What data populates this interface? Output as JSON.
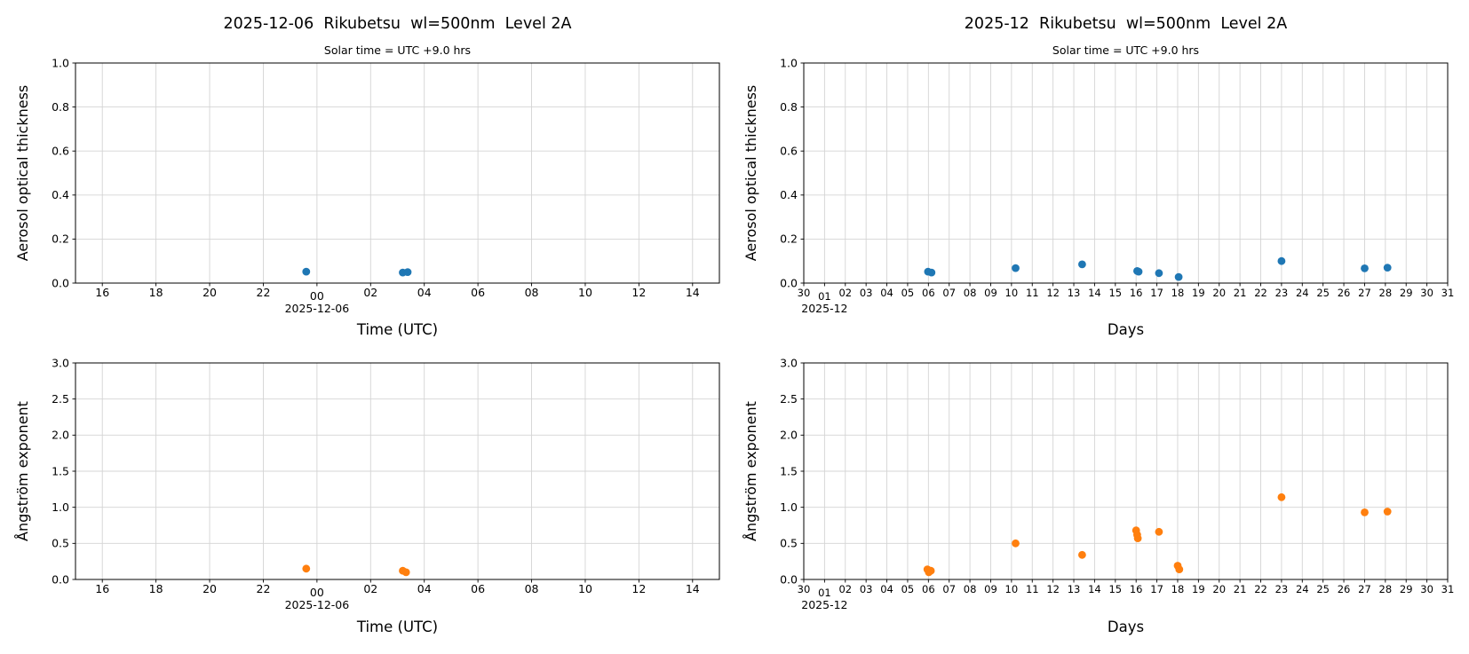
{
  "figure": {
    "background": "#ffffff"
  },
  "colors": {
    "aot_marker": "#1f77b4",
    "angstrom_marker": "#ff7f0e",
    "grid": "#d4d4d4",
    "axis": "#000000",
    "text": "#000000"
  },
  "chart_data": [
    {
      "id": "daily-aot",
      "type": "scatter",
      "title": "2025-12-06  Rikubetsu  wl=500nm  Level 2A",
      "subtitle": "Solar time = UTC +9.0 hrs",
      "xlabel": "Time (UTC)",
      "ylabel": "Aerosol optical thickness",
      "x_offset_label": "2025-12-06",
      "xlim": [
        -9,
        15
      ],
      "ylim": [
        0.0,
        1.0
      ],
      "grid": true,
      "marker_color": "#1f77b4",
      "xticks": [
        {
          "pos": -8,
          "label": "16"
        },
        {
          "pos": -6,
          "label": "18"
        },
        {
          "pos": -4,
          "label": "20"
        },
        {
          "pos": -2,
          "label": "22"
        },
        {
          "pos": 0,
          "label": "00",
          "major": true
        },
        {
          "pos": 2,
          "label": "02"
        },
        {
          "pos": 4,
          "label": "04"
        },
        {
          "pos": 6,
          "label": "06"
        },
        {
          "pos": 8,
          "label": "08"
        },
        {
          "pos": 10,
          "label": "10"
        },
        {
          "pos": 12,
          "label": "12"
        },
        {
          "pos": 14,
          "label": "14"
        }
      ],
      "yticks": [
        {
          "pos": 0.0,
          "label": "0.0"
        },
        {
          "pos": 0.2,
          "label": "0.2"
        },
        {
          "pos": 0.4,
          "label": "0.4"
        },
        {
          "pos": 0.6,
          "label": "0.6"
        },
        {
          "pos": 0.8,
          "label": "0.8"
        },
        {
          "pos": 1.0,
          "label": "1.0"
        }
      ],
      "points": [
        {
          "x": -0.4,
          "y": 0.052
        },
        {
          "x": 3.2,
          "y": 0.048
        },
        {
          "x": 3.38,
          "y": 0.05
        }
      ]
    },
    {
      "id": "monthly-aot",
      "type": "scatter",
      "title": "2025-12  Rikubetsu  wl=500nm  Level 2A",
      "subtitle": "Solar time = UTC +9.0 hrs",
      "xlabel": "Days",
      "ylabel": "Aerosol optical thickness",
      "x_offset_label": "2025-12",
      "xlim": [
        0,
        31
      ],
      "ylim": [
        0.0,
        1.0
      ],
      "grid": true,
      "marker_color": "#1f77b4",
      "xticks": [
        {
          "pos": 0,
          "label": "30"
        },
        {
          "pos": 1,
          "label": "01",
          "major": true
        },
        {
          "pos": 2,
          "label": "02"
        },
        {
          "pos": 3,
          "label": "03"
        },
        {
          "pos": 4,
          "label": "04"
        },
        {
          "pos": 5,
          "label": "05"
        },
        {
          "pos": 6,
          "label": "06"
        },
        {
          "pos": 7,
          "label": "07"
        },
        {
          "pos": 8,
          "label": "08"
        },
        {
          "pos": 9,
          "label": "09"
        },
        {
          "pos": 10,
          "label": "10"
        },
        {
          "pos": 11,
          "label": "11"
        },
        {
          "pos": 12,
          "label": "12"
        },
        {
          "pos": 13,
          "label": "13"
        },
        {
          "pos": 14,
          "label": "14"
        },
        {
          "pos": 15,
          "label": "15"
        },
        {
          "pos": 16,
          "label": "16"
        },
        {
          "pos": 17,
          "label": "17"
        },
        {
          "pos": 18,
          "label": "18"
        },
        {
          "pos": 19,
          "label": "19"
        },
        {
          "pos": 20,
          "label": "20"
        },
        {
          "pos": 21,
          "label": "21"
        },
        {
          "pos": 22,
          "label": "22"
        },
        {
          "pos": 23,
          "label": "23"
        },
        {
          "pos": 24,
          "label": "24"
        },
        {
          "pos": 25,
          "label": "25"
        },
        {
          "pos": 26,
          "label": "26"
        },
        {
          "pos": 27,
          "label": "27"
        },
        {
          "pos": 28,
          "label": "28"
        },
        {
          "pos": 29,
          "label": "29"
        },
        {
          "pos": 30,
          "label": "30"
        },
        {
          "pos": 31,
          "label": "31"
        }
      ],
      "yticks": [
        {
          "pos": 0.0,
          "label": "0.0"
        },
        {
          "pos": 0.2,
          "label": "0.2"
        },
        {
          "pos": 0.4,
          "label": "0.4"
        },
        {
          "pos": 0.6,
          "label": "0.6"
        },
        {
          "pos": 0.8,
          "label": "0.8"
        },
        {
          "pos": 1.0,
          "label": "1.0"
        }
      ],
      "points": [
        {
          "x": 5.98,
          "y": 0.052
        },
        {
          "x": 6.15,
          "y": 0.048
        },
        {
          "x": 10.2,
          "y": 0.068
        },
        {
          "x": 13.4,
          "y": 0.085
        },
        {
          "x": 16.05,
          "y": 0.055
        },
        {
          "x": 16.12,
          "y": 0.052
        },
        {
          "x": 17.1,
          "y": 0.045
        },
        {
          "x": 18.05,
          "y": 0.028
        },
        {
          "x": 23.0,
          "y": 0.1
        },
        {
          "x": 27.0,
          "y": 0.067
        },
        {
          "x": 28.1,
          "y": 0.07
        }
      ]
    },
    {
      "id": "daily-ae",
      "type": "scatter",
      "xlabel": "Time (UTC)",
      "ylabel": "Ångström exponent",
      "x_offset_label": "2025-12-06",
      "xlim": [
        -9,
        15
      ],
      "ylim": [
        0.0,
        3.0
      ],
      "grid": true,
      "marker_color": "#ff7f0e",
      "xticks": [
        {
          "pos": -8,
          "label": "16"
        },
        {
          "pos": -6,
          "label": "18"
        },
        {
          "pos": -4,
          "label": "20"
        },
        {
          "pos": -2,
          "label": "22"
        },
        {
          "pos": 0,
          "label": "00",
          "major": true
        },
        {
          "pos": 2,
          "label": "02"
        },
        {
          "pos": 4,
          "label": "04"
        },
        {
          "pos": 6,
          "label": "06"
        },
        {
          "pos": 8,
          "label": "08"
        },
        {
          "pos": 10,
          "label": "10"
        },
        {
          "pos": 12,
          "label": "12"
        },
        {
          "pos": 14,
          "label": "14"
        }
      ],
      "yticks": [
        {
          "pos": 0.0,
          "label": "0.0"
        },
        {
          "pos": 0.5,
          "label": "0.5"
        },
        {
          "pos": 1.0,
          "label": "1.0"
        },
        {
          "pos": 1.5,
          "label": "1.5"
        },
        {
          "pos": 2.0,
          "label": "2.0"
        },
        {
          "pos": 2.5,
          "label": "2.5"
        },
        {
          "pos": 3.0,
          "label": "3.0"
        }
      ],
      "points": [
        {
          "x": -0.4,
          "y": 0.15
        },
        {
          "x": 3.2,
          "y": 0.12
        },
        {
          "x": 3.32,
          "y": 0.1
        }
      ]
    },
    {
      "id": "monthly-ae",
      "type": "scatter",
      "xlabel": "Days",
      "ylabel": "Ångström exponent",
      "x_offset_label": "2025-12",
      "xlim": [
        0,
        31
      ],
      "ylim": [
        0.0,
        3.0
      ],
      "grid": true,
      "marker_color": "#ff7f0e",
      "xticks": [
        {
          "pos": 0,
          "label": "30"
        },
        {
          "pos": 1,
          "label": "01",
          "major": true
        },
        {
          "pos": 2,
          "label": "02"
        },
        {
          "pos": 3,
          "label": "03"
        },
        {
          "pos": 4,
          "label": "04"
        },
        {
          "pos": 5,
          "label": "05"
        },
        {
          "pos": 6,
          "label": "06"
        },
        {
          "pos": 7,
          "label": "07"
        },
        {
          "pos": 8,
          "label": "08"
        },
        {
          "pos": 9,
          "label": "09"
        },
        {
          "pos": 10,
          "label": "10"
        },
        {
          "pos": 11,
          "label": "11"
        },
        {
          "pos": 12,
          "label": "12"
        },
        {
          "pos": 13,
          "label": "13"
        },
        {
          "pos": 14,
          "label": "14"
        },
        {
          "pos": 15,
          "label": "15"
        },
        {
          "pos": 16,
          "label": "16"
        },
        {
          "pos": 17,
          "label": "17"
        },
        {
          "pos": 18,
          "label": "18"
        },
        {
          "pos": 19,
          "label": "19"
        },
        {
          "pos": 20,
          "label": "20"
        },
        {
          "pos": 21,
          "label": "21"
        },
        {
          "pos": 22,
          "label": "22"
        },
        {
          "pos": 23,
          "label": "23"
        },
        {
          "pos": 24,
          "label": "24"
        },
        {
          "pos": 25,
          "label": "25"
        },
        {
          "pos": 26,
          "label": "26"
        },
        {
          "pos": 27,
          "label": "27"
        },
        {
          "pos": 28,
          "label": "28"
        },
        {
          "pos": 29,
          "label": "29"
        },
        {
          "pos": 30,
          "label": "30"
        },
        {
          "pos": 31,
          "label": "31"
        }
      ],
      "yticks": [
        {
          "pos": 0.0,
          "label": "0.0"
        },
        {
          "pos": 0.5,
          "label": "0.5"
        },
        {
          "pos": 1.0,
          "label": "1.0"
        },
        {
          "pos": 1.5,
          "label": "1.5"
        },
        {
          "pos": 2.0,
          "label": "2.0"
        },
        {
          "pos": 2.5,
          "label": "2.5"
        },
        {
          "pos": 3.0,
          "label": "3.0"
        }
      ],
      "points": [
        {
          "x": 5.95,
          "y": 0.14
        },
        {
          "x": 6.02,
          "y": 0.1
        },
        {
          "x": 6.12,
          "y": 0.12
        },
        {
          "x": 10.2,
          "y": 0.5
        },
        {
          "x": 13.4,
          "y": 0.34
        },
        {
          "x": 16.0,
          "y": 0.68
        },
        {
          "x": 16.05,
          "y": 0.62
        },
        {
          "x": 16.08,
          "y": 0.57
        },
        {
          "x": 17.1,
          "y": 0.66
        },
        {
          "x": 18.0,
          "y": 0.19
        },
        {
          "x": 18.08,
          "y": 0.14
        },
        {
          "x": 23.0,
          "y": 1.14
        },
        {
          "x": 27.0,
          "y": 0.93
        },
        {
          "x": 28.1,
          "y": 0.94
        }
      ]
    }
  ]
}
